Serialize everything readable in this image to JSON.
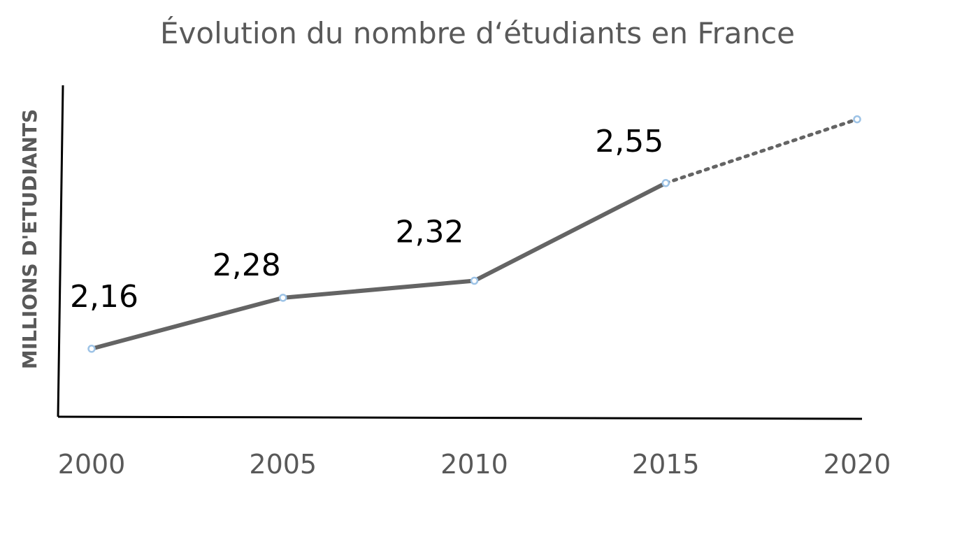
{
  "chart_data": {
    "type": "line",
    "title": "Évolution du nombre d‘étudiants en France",
    "ylabel": "MILLIONS D'ETUDIANTS",
    "xlabel": "",
    "categories": [
      "2000",
      "2005",
      "2010",
      "2015",
      "2020"
    ],
    "x": [
      2000,
      2005,
      2010,
      2015,
      2020
    ],
    "series": [
      {
        "values": [
          2.16,
          2.28,
          2.32,
          2.55,
          2.7
        ],
        "data_labels": [
          "2,16",
          "2,28",
          "2,32",
          "2,55",
          ""
        ],
        "projected_from_index": 3
      }
    ],
    "ylim": [
      2.0,
      2.78
    ],
    "grid": false,
    "legend": "none",
    "colors": {
      "line": "#646464",
      "marker_stroke": "#9dc3e6",
      "marker_fill": "#ffffff",
      "axis": "#000000",
      "text": "#595959",
      "data_label": "#000000"
    }
  }
}
